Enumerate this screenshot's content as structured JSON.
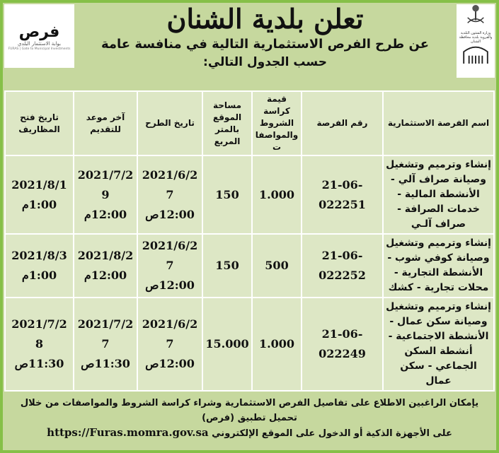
{
  "header": {
    "title": "تعلن بلدية الشنان",
    "subtitle": "عن طرح الفرص الاستثمارية التالية في منافسة عامة",
    "subtitle2": "حسب الجدول التالي:"
  },
  "logos": {
    "furas_ar": "فرص",
    "furas_sub": "بوابة الاستثمار البلدي",
    "furas_en": "FURAS | Gate to Municipal Investments",
    "ministry": "وزارة الشئون البلدية والقروية بلدية محافظة الشنان"
  },
  "table": {
    "headers": [
      "اسم الفرصة الاستثمارية",
      "رقم الفرصة",
      "قيمة كراسة الشروط والمواصفات",
      "مساحة الموقع بالمتر المربع",
      "تاريخ الطرح",
      "آخر موعد للتقديم",
      "تاريخ فتح المظاريف"
    ],
    "rows": [
      {
        "name": "إنشاء وترميم وتشغيل وصيانة صراف آلي - الأنشطة المالية - خدمات الصرافة - صراف آلـي",
        "number": "21-06-022251",
        "fee": "1.000",
        "area": "150",
        "posted_date": "2021/6/27",
        "posted_time": "12:00ص",
        "deadline_date": "2021/7/29",
        "deadline_time": "12:00م",
        "opening_date": "2021/8/1",
        "opening_time": "1:00م"
      },
      {
        "name": "إنشاء وترميم وتشغيل وصيانة كوفي شوب - الأنشطة التجارية - محلات تجارية - كشك",
        "number": "21-06-022252",
        "fee": "500",
        "area": "150",
        "posted_date": "2021/6/27",
        "posted_time": "12:00ص",
        "deadline_date": "2021/8/2",
        "deadline_time": "12:00م",
        "opening_date": "2021/8/3",
        "opening_time": "1:00م"
      },
      {
        "name": "إنشاء وترميم وتشغيل وصيانة سكن عمال - الأنشطة الاجتماعية - أنشطة السكن الجماعي - سكن عمال",
        "number": "21-06-022249",
        "fee": "1.000",
        "area": "15.000",
        "posted_date": "2021/6/27",
        "posted_time": "12:00ص",
        "deadline_date": "2021/7/27",
        "deadline_time": "11:30ص",
        "opening_date": "2021/7/28",
        "opening_time": "11:30ص"
      }
    ]
  },
  "footer": {
    "line1": "يإمكان الراغبين الاطلاع على تفاصيل الفرص الاستثمارية وشراء كراسة الشروط والمواصفات من خلال تحميل تطبيق (فرص)",
    "line2": "على الأجهزة الذكية أو الدخول على الموقع الإلكتروني",
    "url": "https://Furas.momra.gov.sa"
  },
  "colors": {
    "border": "#86c048",
    "background": "#c6d89e",
    "table": "#dde7c5"
  }
}
